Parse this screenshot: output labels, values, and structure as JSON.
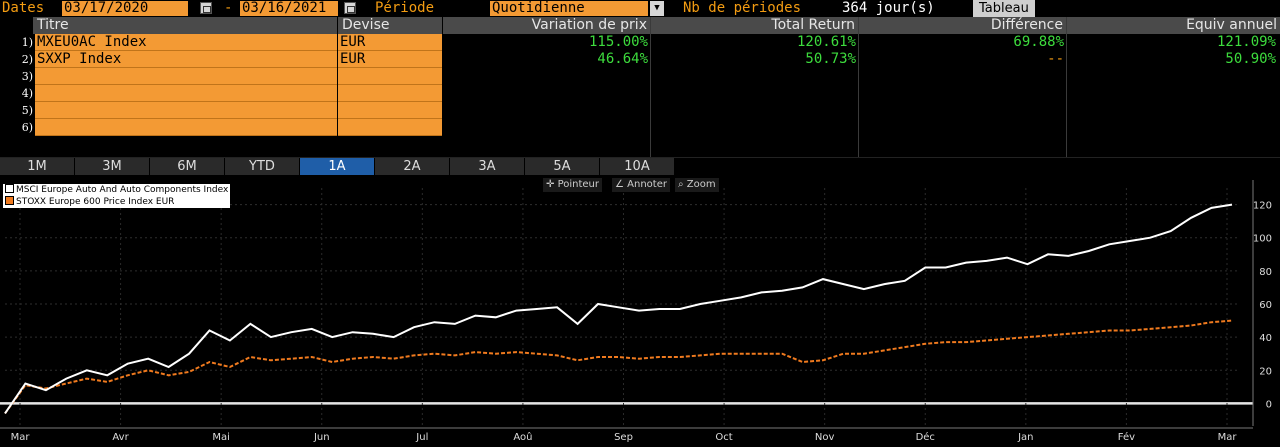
{
  "topbar": {
    "dates_label": "Dates",
    "start_date": "03/17/2020",
    "separator": "-",
    "end_date": "03/16/2021",
    "period_label": "Période",
    "period_value": "Quotidienne",
    "nb_periods_label": "Nb de périodes",
    "nb_periods_value": "364 jour(s)",
    "view_button": "Tableau"
  },
  "table": {
    "headers": [
      "Titre",
      "Devise",
      "Variation de prix",
      "Total Return",
      "Différence",
      "Equiv annuel"
    ],
    "rows": [
      {
        "num": "1)",
        "title": "MXEU0AC Index",
        "currency": "EUR",
        "price_change": "115.00%",
        "total_return": "120.61%",
        "difference": "69.88%",
        "annual_equiv": "121.09%"
      },
      {
        "num": "2)",
        "title": "SXXP Index",
        "currency": "EUR",
        "price_change": "46.64%",
        "total_return": "50.73%",
        "difference": "--",
        "annual_equiv": "50.90%"
      },
      {
        "num": "3)",
        "title": "",
        "currency": ""
      },
      {
        "num": "4)",
        "title": "",
        "currency": ""
      },
      {
        "num": "5)",
        "title": "",
        "currency": ""
      },
      {
        "num": "6)",
        "title": "",
        "currency": ""
      }
    ]
  },
  "period_buttons": [
    "1M",
    "3M",
    "6M",
    "YTD",
    "1A",
    "2A",
    "3A",
    "5A",
    "10A"
  ],
  "active_period": "1A",
  "chart_tools": [
    "Pointeur",
    "Annoter",
    "Zoom"
  ],
  "colors": {
    "accent_orange": "#f39a34",
    "positive_green": "#3ddc3d",
    "active_tab": "#1f5ea8"
  },
  "chart_data": {
    "type": "line",
    "x_ticks": [
      "Mar",
      "Avr",
      "Mai",
      "Jun",
      "Jul",
      "Aoû",
      "Sep",
      "Oct",
      "Nov",
      "Déc",
      "Jan",
      "Fév",
      "Mar"
    ],
    "ylim": [
      -10,
      130
    ],
    "y_ticks": [
      0,
      20,
      40,
      60,
      80,
      100,
      120
    ],
    "legend_position": "top-left",
    "series": [
      {
        "name": "MSCI Europe Auto And Auto Components Index",
        "color": "#ffffff",
        "style": "solid",
        "values": [
          -6,
          12,
          8,
          15,
          20,
          17,
          24,
          27,
          22,
          30,
          44,
          38,
          48,
          40,
          43,
          45,
          40,
          43,
          42,
          40,
          46,
          49,
          48,
          53,
          52,
          56,
          57,
          58,
          48,
          60,
          58,
          56,
          57,
          57,
          60,
          62,
          64,
          67,
          68,
          70,
          75,
          72,
          69,
          72,
          74,
          82,
          82,
          85,
          86,
          88,
          84,
          90,
          89,
          92,
          96,
          98,
          100,
          104,
          112,
          118,
          120
        ]
      },
      {
        "name": "STOXX Europe 600 Price Index EUR",
        "color": "#f07a1e",
        "style": "dashed",
        "values": [
          -6,
          11,
          9,
          12,
          15,
          13,
          17,
          20,
          17,
          19,
          25,
          22,
          28,
          26,
          27,
          28,
          25,
          27,
          28,
          27,
          29,
          30,
          29,
          31,
          30,
          31,
          30,
          29,
          26,
          28,
          28,
          27,
          28,
          28,
          29,
          30,
          30,
          30,
          30,
          25,
          26,
          30,
          30,
          32,
          34,
          36,
          37,
          37,
          38,
          39,
          40,
          41,
          42,
          43,
          44,
          44,
          45,
          46,
          47,
          49,
          50
        ]
      }
    ]
  }
}
